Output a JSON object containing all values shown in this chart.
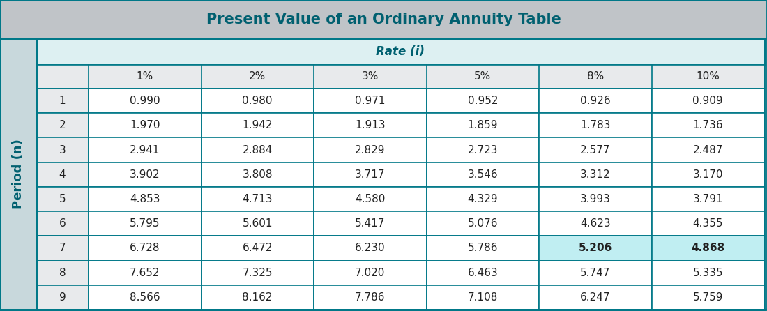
{
  "title": "Present Value of an Ordinary Annuity Table",
  "title_color": "#006070",
  "title_bg": "#c0c4c8",
  "rate_label": "Rate (i)",
  "rate_bg": "#ddf0f2",
  "rate_color": "#006070",
  "period_label": "Period (n)",
  "period_bg": "#c8d8dc",
  "period_color": "#006070",
  "col_headers": [
    "",
    "1%",
    "2%",
    "3%",
    "5%",
    "8%",
    "10%"
  ],
  "header_bg": "#e8eaec",
  "rows": [
    [
      "1",
      "0.990",
      "0.980",
      "0.971",
      "0.952",
      "0.926",
      "0.909"
    ],
    [
      "2",
      "1.970",
      "1.942",
      "1.913",
      "1.859",
      "1.783",
      "1.736"
    ],
    [
      "3",
      "2.941",
      "2.884",
      "2.829",
      "2.723",
      "2.577",
      "2.487"
    ],
    [
      "4",
      "3.902",
      "3.808",
      "3.717",
      "3.546",
      "3.312",
      "3.170"
    ],
    [
      "5",
      "4.853",
      "4.713",
      "4.580",
      "4.329",
      "3.993",
      "3.791"
    ],
    [
      "6",
      "5.795",
      "5.601",
      "5.417",
      "5.076",
      "4.623",
      "4.355"
    ],
    [
      "7",
      "6.728",
      "6.472",
      "6.230",
      "5.786",
      "5.206",
      "4.868"
    ],
    [
      "8",
      "7.652",
      "7.325",
      "7.020",
      "6.463",
      "5.747",
      "5.335"
    ],
    [
      "9",
      "8.566",
      "8.162",
      "7.786",
      "7.108",
      "6.247",
      "5.759"
    ]
  ],
  "highlighted_row": 6,
  "highlighted_cols": [
    5,
    6
  ],
  "highlight_bg": "#c0eef2",
  "cell_bg": "#ffffff",
  "border_color": "#007888",
  "text_color": "#222222",
  "normal_row_bg": "#ffffff",
  "title_fontsize": 15,
  "rate_fontsize": 12,
  "header_fontsize": 11,
  "data_fontsize": 11,
  "period_fontsize": 13
}
